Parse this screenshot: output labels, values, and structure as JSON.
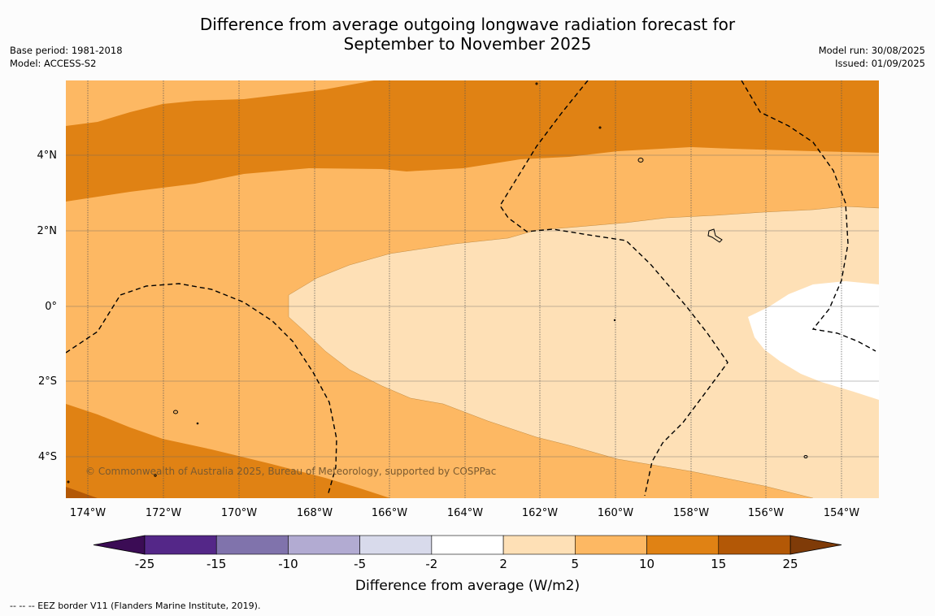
{
  "title_line1": "Difference from average outgoing longwave radiation forecast for",
  "title_line2": "September to November 2025",
  "left_info": {
    "base_period": "Base period: 1981-2018",
    "model": "Model: ACCESS-S2"
  },
  "right_info": {
    "model_run": "Model run: 30/08/2025",
    "issued": "Issued: 01/09/2025"
  },
  "credit": "© Commonwealth of Australia 2025, Bureau of Meteorology, supported by COSPPac",
  "footer": "--  --  -- EEZ border V11 (Flanders Marine Institute, 2019).",
  "colorbar": {
    "title": "Difference from average (W/m2)",
    "ticks": [
      "-25",
      "-15",
      "-10",
      "-5",
      "-2",
      "2",
      "5",
      "10",
      "15",
      "25"
    ],
    "colors": [
      "#3b0c55",
      "#542788",
      "#8073ac",
      "#b2abd2",
      "#d8daeb",
      "#ffffff",
      "#fee0b6",
      "#fdb863",
      "#e08214",
      "#b35806",
      "#7f3b08"
    ]
  },
  "map": {
    "lon_labels": [
      "174°W",
      "172°W",
      "170°W",
      "168°W",
      "166°W",
      "164°W",
      "162°W",
      "160°W",
      "158°W",
      "156°W",
      "154°W"
    ],
    "lat_labels": [
      "4°N",
      "2°N",
      "0°",
      "2°S",
      "4°S"
    ]
  }
}
